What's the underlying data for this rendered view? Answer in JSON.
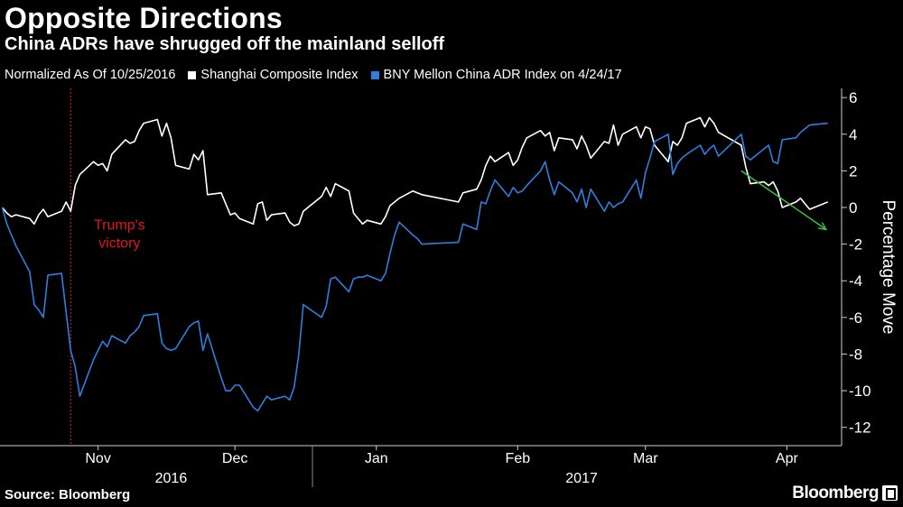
{
  "header": {
    "title": "Opposite Directions",
    "subtitle": "China ADRs have shrugged off the mainland selloff"
  },
  "legend": {
    "note": "Normalized As Of 10/25/2016",
    "items": [
      {
        "label": "Shanghai Composite Index",
        "color": "#ffffff"
      },
      {
        "label": "BNY Mellon China ADR Index on 4/24/17",
        "color": "#2f7fe0"
      }
    ]
  },
  "footer": {
    "source": "Source: Bloomberg",
    "brand": "Bloomberg"
  },
  "chart_data": {
    "type": "line",
    "x_start": "2016-10-25",
    "x_end": "2017-04-24",
    "ylabel": "Percentage Move",
    "ylim": [
      -13,
      6.5
    ],
    "y_ticks": [
      6,
      4,
      2,
      0,
      -2,
      -4,
      -6,
      -8,
      -10,
      -12
    ],
    "y_tick_labels": [
      "6",
      "4",
      "2",
      "0",
      "-2",
      "-4",
      "-6",
      "-8",
      "-10",
      "-12"
    ],
    "month_ticks": [
      {
        "label": "Nov",
        "date": "2016-11-15"
      },
      {
        "label": "Dec",
        "date": "2016-12-15"
      },
      {
        "label": "Jan",
        "date": "2017-01-15"
      },
      {
        "label": "Feb",
        "date": "2017-02-15"
      },
      {
        "label": "Mar",
        "date": "2017-03-15"
      },
      {
        "label": "Apr",
        "date": "2017-04-15"
      }
    ],
    "year_labels": [
      {
        "label": "2016",
        "date": "2016-12-01"
      },
      {
        "label": "2017",
        "date": "2017-03-01"
      }
    ],
    "annotation": {
      "text": [
        "Trump's",
        "victory"
      ],
      "date": "2016-11-09",
      "color": "#e0171f"
    },
    "grid": false,
    "series": [
      {
        "name": "Shanghai Composite Index",
        "color": "#ffffff",
        "points": [
          [
            "2016-10-25",
            0.0
          ],
          [
            "2016-10-26",
            -0.3
          ],
          [
            "2016-10-27",
            -0.5
          ],
          [
            "2016-10-28",
            -0.4
          ],
          [
            "2016-10-31",
            -0.6
          ],
          [
            "2016-11-01",
            -0.9
          ],
          [
            "2016-11-02",
            -0.4
          ],
          [
            "2016-11-03",
            -0.1
          ],
          [
            "2016-11-04",
            -0.5
          ],
          [
            "2016-11-07",
            -0.2
          ],
          [
            "2016-11-08",
            0.3
          ],
          [
            "2016-11-09",
            -0.2
          ],
          [
            "2016-11-10",
            1.2
          ],
          [
            "2016-11-11",
            1.8
          ],
          [
            "2016-11-14",
            2.5
          ],
          [
            "2016-11-15",
            2.3
          ],
          [
            "2016-11-16",
            2.4
          ],
          [
            "2016-11-17",
            2.0
          ],
          [
            "2016-11-18",
            2.9
          ],
          [
            "2016-11-21",
            3.7
          ],
          [
            "2016-11-22",
            3.5
          ],
          [
            "2016-11-23",
            3.6
          ],
          [
            "2016-11-24",
            4.2
          ],
          [
            "2016-11-25",
            4.6
          ],
          [
            "2016-11-28",
            4.8
          ],
          [
            "2016-11-29",
            3.9
          ],
          [
            "2016-11-30",
            4.6
          ],
          [
            "2016-12-01",
            3.8
          ],
          [
            "2016-12-02",
            2.3
          ],
          [
            "2016-12-05",
            2.1
          ],
          [
            "2016-12-06",
            2.9
          ],
          [
            "2016-12-07",
            2.6
          ],
          [
            "2016-12-08",
            3.1
          ],
          [
            "2016-12-09",
            0.7
          ],
          [
            "2016-12-12",
            0.8
          ],
          [
            "2016-12-13",
            0.2
          ],
          [
            "2016-12-14",
            -0.4
          ],
          [
            "2016-12-15",
            -0.3
          ],
          [
            "2016-12-16",
            -0.6
          ],
          [
            "2016-12-19",
            -0.9
          ],
          [
            "2016-12-20",
            0.2
          ],
          [
            "2016-12-21",
            0.3
          ],
          [
            "2016-12-22",
            -0.7
          ],
          [
            "2016-12-23",
            -0.4
          ],
          [
            "2016-12-26",
            -0.3
          ],
          [
            "2016-12-27",
            -0.8
          ],
          [
            "2016-12-28",
            -1.0
          ],
          [
            "2016-12-29",
            -0.9
          ],
          [
            "2016-12-30",
            -0.2
          ],
          [
            "2017-01-03",
            0.6
          ],
          [
            "2017-01-04",
            1.1
          ],
          [
            "2017-01-05",
            0.6
          ],
          [
            "2017-01-06",
            1.3
          ],
          [
            "2017-01-09",
            0.9
          ],
          [
            "2017-01-10",
            -0.3
          ],
          [
            "2017-01-11",
            -0.6
          ],
          [
            "2017-01-12",
            -0.9
          ],
          [
            "2017-01-13",
            -0.7
          ],
          [
            "2017-01-16",
            -0.9
          ],
          [
            "2017-01-17",
            -0.5
          ],
          [
            "2017-01-18",
            0.1
          ],
          [
            "2017-01-19",
            0.3
          ],
          [
            "2017-01-20",
            0.5
          ],
          [
            "2017-01-23",
            0.9
          ],
          [
            "2017-01-24",
            0.8
          ],
          [
            "2017-01-25",
            0.7
          ],
          [
            "2017-02-02",
            0.3
          ],
          [
            "2017-02-03",
            0.8
          ],
          [
            "2017-02-06",
            1.0
          ],
          [
            "2017-02-07",
            1.5
          ],
          [
            "2017-02-08",
            2.3
          ],
          [
            "2017-02-09",
            2.8
          ],
          [
            "2017-02-10",
            2.5
          ],
          [
            "2017-02-13",
            3.0
          ],
          [
            "2017-02-14",
            2.3
          ],
          [
            "2017-02-15",
            2.6
          ],
          [
            "2017-02-16",
            3.3
          ],
          [
            "2017-02-17",
            3.8
          ],
          [
            "2017-02-20",
            4.2
          ],
          [
            "2017-02-21",
            3.9
          ],
          [
            "2017-02-22",
            4.1
          ],
          [
            "2017-02-23",
            3.1
          ],
          [
            "2017-02-24",
            3.8
          ],
          [
            "2017-02-27",
            3.7
          ],
          [
            "2017-02-28",
            3.2
          ],
          [
            "2017-03-01",
            3.9
          ],
          [
            "2017-03-02",
            3.4
          ],
          [
            "2017-03-03",
            2.7
          ],
          [
            "2017-03-06",
            3.6
          ],
          [
            "2017-03-07",
            3.5
          ],
          [
            "2017-03-08",
            4.5
          ],
          [
            "2017-03-09",
            3.4
          ],
          [
            "2017-03-10",
            4.0
          ],
          [
            "2017-03-13",
            4.4
          ],
          [
            "2017-03-14",
            3.8
          ],
          [
            "2017-03-15",
            4.4
          ],
          [
            "2017-03-16",
            4.3
          ],
          [
            "2017-03-17",
            3.4
          ],
          [
            "2017-03-20",
            2.5
          ],
          [
            "2017-03-21",
            3.6
          ],
          [
            "2017-03-22",
            3.4
          ],
          [
            "2017-03-23",
            3.8
          ],
          [
            "2017-03-24",
            4.6
          ],
          [
            "2017-03-27",
            4.9
          ],
          [
            "2017-03-28",
            4.4
          ],
          [
            "2017-03-29",
            4.9
          ],
          [
            "2017-03-30",
            4.6
          ],
          [
            "2017-03-31",
            4.1
          ],
          [
            "2017-04-05",
            3.4
          ],
          [
            "2017-04-06",
            2.2
          ],
          [
            "2017-04-07",
            1.3
          ],
          [
            "2017-04-10",
            1.4
          ],
          [
            "2017-04-11",
            1.2
          ],
          [
            "2017-04-12",
            1.4
          ],
          [
            "2017-04-13",
            0.9
          ],
          [
            "2017-04-14",
            0.0
          ],
          [
            "2017-04-17",
            0.3
          ],
          [
            "2017-04-18",
            0.5
          ],
          [
            "2017-04-20",
            -0.1
          ],
          [
            "2017-04-24",
            0.3
          ]
        ]
      },
      {
        "name": "BNY Mellon China ADR Index on 4/24/17",
        "color": "#2f7fe0",
        "points": [
          [
            "2016-10-25",
            0.0
          ],
          [
            "2016-10-26",
            -0.9
          ],
          [
            "2016-10-27",
            -1.5
          ],
          [
            "2016-10-28",
            -2.1
          ],
          [
            "2016-10-31",
            -3.5
          ],
          [
            "2016-11-01",
            -5.3
          ],
          [
            "2016-11-02",
            -5.6
          ],
          [
            "2016-11-03",
            -6.0
          ],
          [
            "2016-11-04",
            -3.7
          ],
          [
            "2016-11-07",
            -3.6
          ],
          [
            "2016-11-08",
            -5.7
          ],
          [
            "2016-11-09",
            -7.8
          ],
          [
            "2016-11-10",
            -8.7
          ],
          [
            "2016-11-11",
            -10.3
          ],
          [
            "2016-11-14",
            -8.3
          ],
          [
            "2016-11-15",
            -7.8
          ],
          [
            "2016-11-16",
            -7.3
          ],
          [
            "2016-11-17",
            -7.6
          ],
          [
            "2016-11-18",
            -7.0
          ],
          [
            "2016-11-21",
            -7.4
          ],
          [
            "2016-11-22",
            -7.0
          ],
          [
            "2016-11-23",
            -6.8
          ],
          [
            "2016-11-24",
            -6.5
          ],
          [
            "2016-11-25",
            -5.9
          ],
          [
            "2016-11-28",
            -5.8
          ],
          [
            "2016-11-29",
            -7.4
          ],
          [
            "2016-11-30",
            -7.7
          ],
          [
            "2016-12-01",
            -7.8
          ],
          [
            "2016-12-02",
            -7.7
          ],
          [
            "2016-12-05",
            -6.5
          ],
          [
            "2016-12-06",
            -6.3
          ],
          [
            "2016-12-07",
            -6.2
          ],
          [
            "2016-12-08",
            -7.8
          ],
          [
            "2016-12-09",
            -6.9
          ],
          [
            "2016-12-12",
            -9.3
          ],
          [
            "2016-12-13",
            -10.0
          ],
          [
            "2016-12-14",
            -10.0
          ],
          [
            "2016-12-15",
            -9.7
          ],
          [
            "2016-12-16",
            -9.7
          ],
          [
            "2016-12-19",
            -10.9
          ],
          [
            "2016-12-20",
            -11.1
          ],
          [
            "2016-12-21",
            -10.7
          ],
          [
            "2016-12-22",
            -10.3
          ],
          [
            "2016-12-23",
            -10.5
          ],
          [
            "2016-12-26",
            -10.3
          ],
          [
            "2016-12-27",
            -10.5
          ],
          [
            "2016-12-28",
            -9.8
          ],
          [
            "2016-12-29",
            -8.0
          ],
          [
            "2016-12-30",
            -5.3
          ],
          [
            "2017-01-03",
            -6.0
          ],
          [
            "2017-01-04",
            -5.4
          ],
          [
            "2017-01-05",
            -3.9
          ],
          [
            "2017-01-06",
            -3.8
          ],
          [
            "2017-01-09",
            -4.6
          ],
          [
            "2017-01-10",
            -3.9
          ],
          [
            "2017-01-11",
            -3.8
          ],
          [
            "2017-01-12",
            -3.8
          ],
          [
            "2017-01-13",
            -3.7
          ],
          [
            "2017-01-16",
            -4.0
          ],
          [
            "2017-01-17",
            -3.6
          ],
          [
            "2017-01-18",
            -2.5
          ],
          [
            "2017-01-19",
            -1.5
          ],
          [
            "2017-01-20",
            -0.8
          ],
          [
            "2017-01-23",
            -1.5
          ],
          [
            "2017-01-24",
            -1.7
          ],
          [
            "2017-01-25",
            -2.0
          ],
          [
            "2017-02-02",
            -1.9
          ],
          [
            "2017-02-03",
            -0.9
          ],
          [
            "2017-02-06",
            -1.2
          ],
          [
            "2017-02-07",
            0.3
          ],
          [
            "2017-02-08",
            0.2
          ],
          [
            "2017-02-09",
            0.9
          ],
          [
            "2017-02-10",
            1.5
          ],
          [
            "2017-02-13",
            0.6
          ],
          [
            "2017-02-14",
            1.1
          ],
          [
            "2017-02-15",
            0.8
          ],
          [
            "2017-02-16",
            0.9
          ],
          [
            "2017-02-17",
            1.2
          ],
          [
            "2017-02-20",
            2.0
          ],
          [
            "2017-02-21",
            2.5
          ],
          [
            "2017-02-22",
            1.5
          ],
          [
            "2017-02-23",
            0.7
          ],
          [
            "2017-02-24",
            1.4
          ],
          [
            "2017-02-27",
            0.8
          ],
          [
            "2017-02-28",
            0.3
          ],
          [
            "2017-03-01",
            1.0
          ],
          [
            "2017-03-02",
            0.0
          ],
          [
            "2017-03-03",
            1.0
          ],
          [
            "2017-03-06",
            -0.2
          ],
          [
            "2017-03-07",
            0.3
          ],
          [
            "2017-03-08",
            0.0
          ],
          [
            "2017-03-09",
            0.2
          ],
          [
            "2017-03-10",
            0.3
          ],
          [
            "2017-03-13",
            1.5
          ],
          [
            "2017-03-14",
            0.5
          ],
          [
            "2017-03-15",
            1.9
          ],
          [
            "2017-03-16",
            2.7
          ],
          [
            "2017-03-17",
            3.6
          ],
          [
            "2017-03-20",
            4.0
          ],
          [
            "2017-03-21",
            1.8
          ],
          [
            "2017-03-22",
            2.4
          ],
          [
            "2017-03-23",
            2.7
          ],
          [
            "2017-03-24",
            2.9
          ],
          [
            "2017-03-27",
            3.4
          ],
          [
            "2017-03-28",
            2.9
          ],
          [
            "2017-03-29",
            3.2
          ],
          [
            "2017-03-30",
            3.4
          ],
          [
            "2017-03-31",
            2.8
          ],
          [
            "2017-04-05",
            4.0
          ],
          [
            "2017-04-06",
            2.8
          ],
          [
            "2017-04-07",
            2.6
          ],
          [
            "2017-04-10",
            3.2
          ],
          [
            "2017-04-11",
            3.4
          ],
          [
            "2017-04-12",
            2.5
          ],
          [
            "2017-04-13",
            2.4
          ],
          [
            "2017-04-14",
            3.7
          ],
          [
            "2017-04-17",
            3.8
          ],
          [
            "2017-04-18",
            4.1
          ],
          [
            "2017-04-20",
            4.5
          ],
          [
            "2017-04-24",
            4.6
          ]
        ]
      }
    ],
    "arrow": {
      "from": {
        "date": "2017-04-05",
        "y": 2.0
      },
      "to": {
        "date": "2017-04-24",
        "y": -1.2
      },
      "color": "#3fc63f"
    }
  }
}
